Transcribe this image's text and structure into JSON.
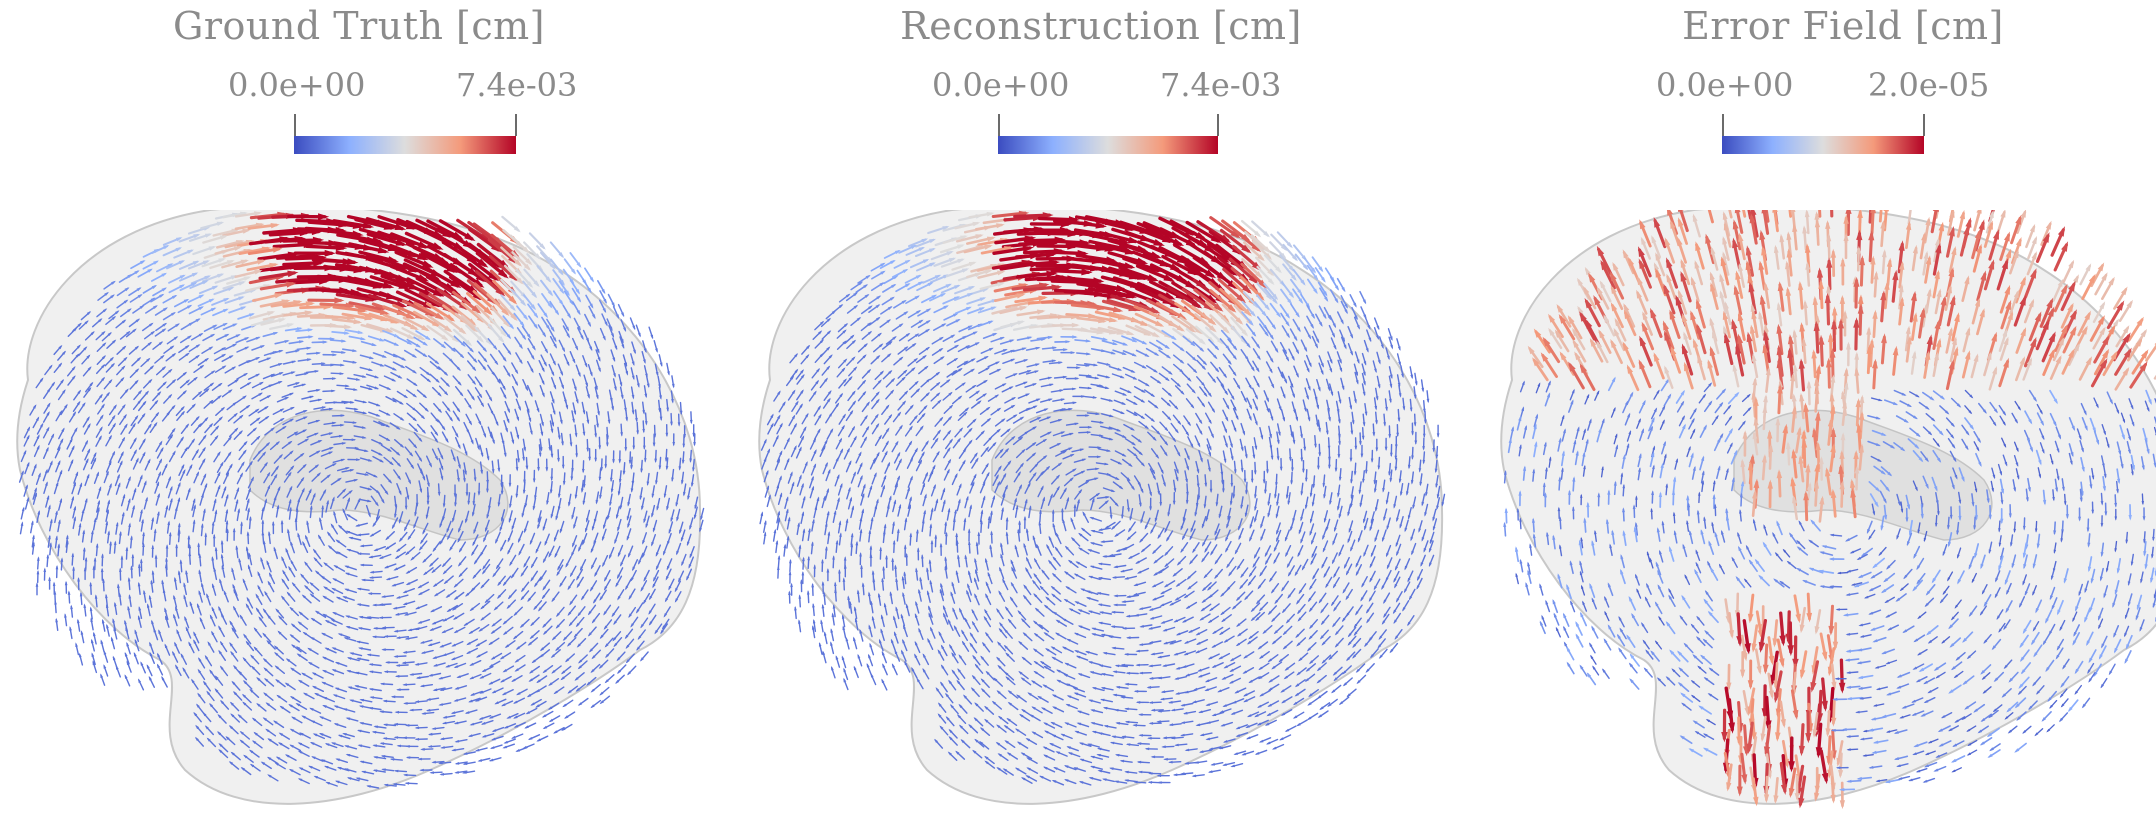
{
  "panels": [
    {
      "id": "ground-truth",
      "title": "Ground Truth [cm]",
      "colorbar": {
        "min_label": "0.0e+00",
        "max_label": "7.4e-03"
      },
      "field": "smooth"
    },
    {
      "id": "reconstruction",
      "title": "Reconstruction [cm]",
      "colorbar": {
        "min_label": "0.0e+00",
        "max_label": "7.4e-03"
      },
      "field": "smooth"
    },
    {
      "id": "error-field",
      "title": "Error Field [cm]",
      "colorbar": {
        "min_label": "0.0e+00",
        "max_label": "2.0e-05"
      },
      "field": "error"
    }
  ],
  "colormap": [
    "#3b4cc0",
    "#8db0fe",
    "#dddddd",
    "#f49a7b",
    "#b40426"
  ],
  "arrow_color_low": "#5a74a8",
  "brain_fill": "#e3e3e3",
  "brain_stroke": "#c8c8c8"
}
